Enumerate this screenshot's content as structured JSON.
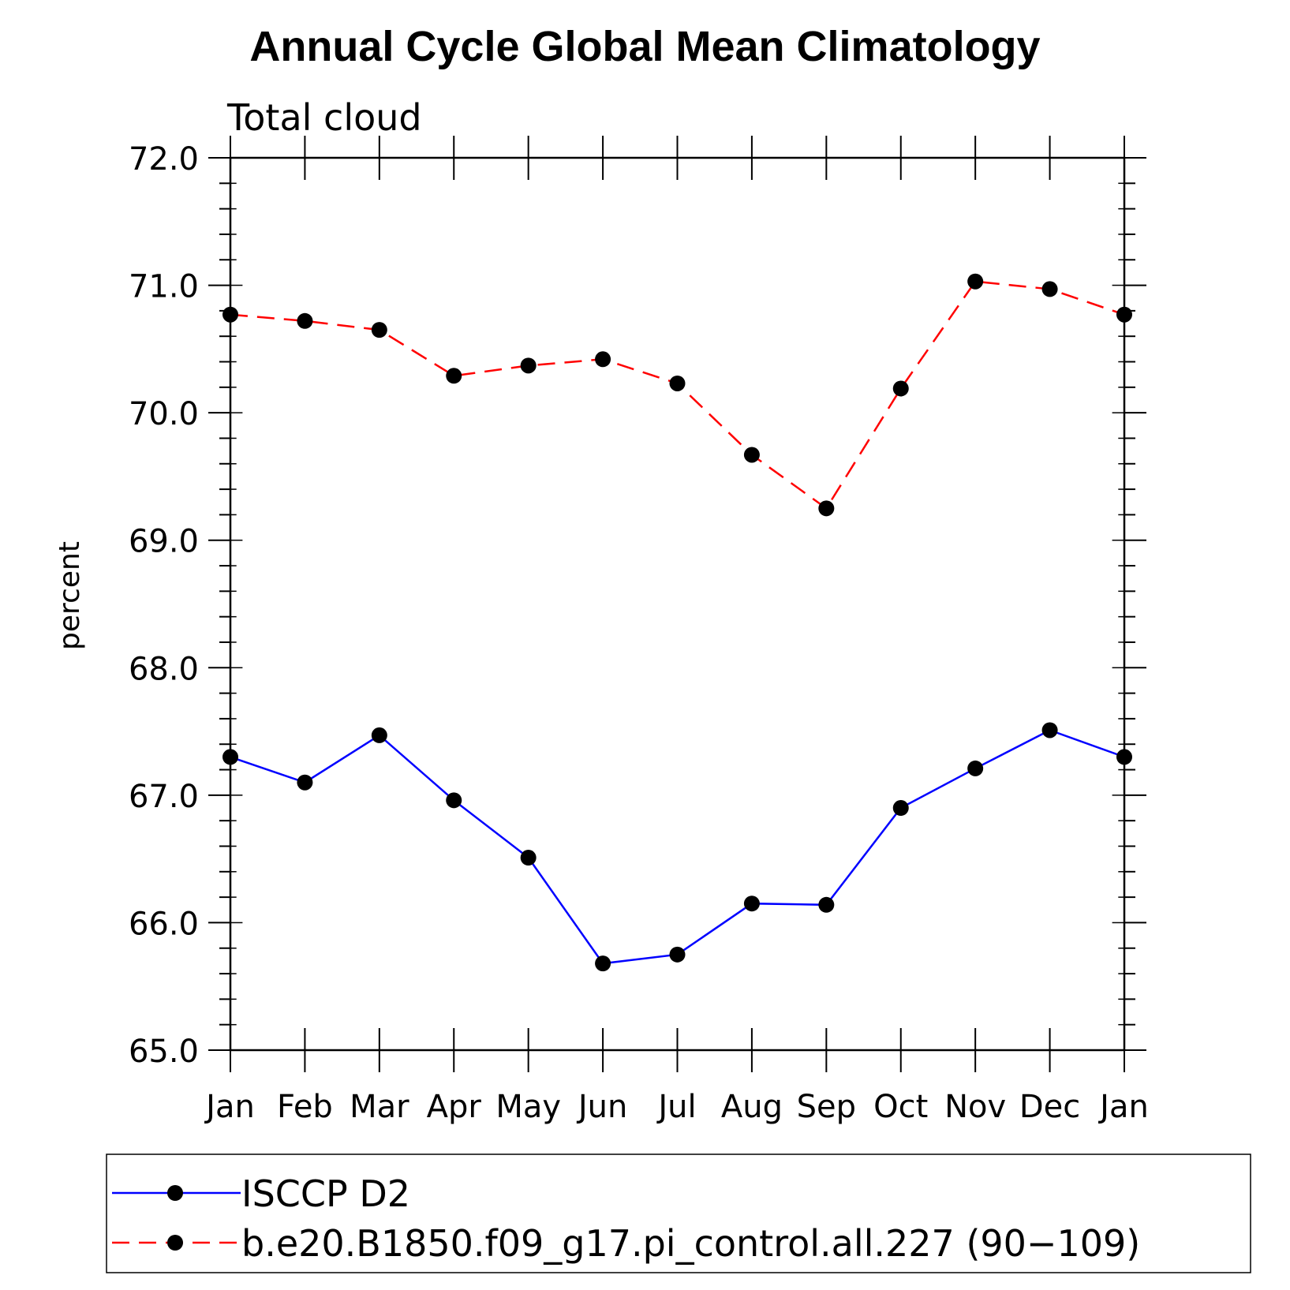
{
  "chart_data": {
    "type": "line",
    "title": "Annual Cycle Global Mean Climatology",
    "subtitle": "Total cloud",
    "ylabel": "percent",
    "xlabel": "",
    "ylim": [
      65.0,
      72.0
    ],
    "yticks": [
      "65.0",
      "66.0",
      "67.0",
      "68.0",
      "69.0",
      "70.0",
      "71.0",
      "72.0"
    ],
    "categories": [
      "Jan",
      "Feb",
      "Mar",
      "Apr",
      "May",
      "Jun",
      "Jul",
      "Aug",
      "Sep",
      "Oct",
      "Nov",
      "Dec",
      "Jan"
    ],
    "grid": false,
    "legend_position": "bottom",
    "series": [
      {
        "name": "ISCCP D2",
        "color": "#0000ff",
        "dash": "solid",
        "marker": "circle",
        "values": [
          67.3,
          67.1,
          67.47,
          66.96,
          66.51,
          65.68,
          65.75,
          66.15,
          66.14,
          66.9,
          67.21,
          67.51,
          67.3
        ]
      },
      {
        "name": "b.e20.B1850.f09_g17.pi_control.all.227 (90−109)",
        "color": "#ff0000",
        "dash": "dashed",
        "marker": "circle",
        "values": [
          70.77,
          70.72,
          70.65,
          70.29,
          70.37,
          70.42,
          70.23,
          69.67,
          69.25,
          70.19,
          71.03,
          70.97,
          70.77
        ]
      }
    ]
  }
}
